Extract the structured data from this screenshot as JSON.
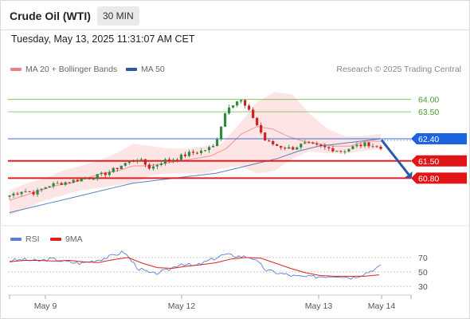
{
  "header": {
    "instrument": "Crude Oil (WTI)",
    "timeframe": "30 MIN",
    "datetime": "Tuesday, May 13, 2025 11:31:07 AM CET"
  },
  "legend": {
    "ma20_label": "MA 20 + Bollinger Bands",
    "ma50_label": "MA 50",
    "credit": "Research © 2025 Trading Central"
  },
  "colors": {
    "up": "#2e8b3e",
    "down": "#cc2222",
    "ma20": "#f08080",
    "band_fill": "#fde0e0",
    "ma50": "#3a6fb5",
    "resistance": "#3a6fd8",
    "support": "#e02020",
    "target_line": "#6fbf4a",
    "target_text": "#4c9a2a",
    "rsi": "#5b7fd9",
    "rsi_ma": "#e02020",
    "arrow": "#2b5aa5"
  },
  "chart_data": [
    {
      "type": "candlestick",
      "x_ticks": [
        "May 9",
        "May 12",
        "May 13",
        "May 14"
      ],
      "ylim": [
        58.9,
        64.8
      ],
      "levels": [
        {
          "value": 64.0,
          "label": "64.00",
          "kind": "target"
        },
        {
          "value": 63.5,
          "label": "63.50",
          "kind": "target"
        },
        {
          "value": 62.4,
          "label": "62.40",
          "kind": "resistance"
        },
        {
          "value": 61.5,
          "label": "61.50",
          "kind": "support"
        },
        {
          "value": 60.8,
          "label": "60.80",
          "kind": "support"
        }
      ],
      "close_path": [
        60.1,
        60.3,
        60.2,
        60.5,
        60.6,
        60.7,
        60.8,
        60.9,
        61.1,
        61.4,
        61.6,
        61.2,
        61.5,
        61.6,
        61.8,
        61.9,
        62.1,
        63.7,
        64.0,
        63.3,
        62.3,
        62.1,
        62.0,
        62.2,
        62.1,
        62.0,
        61.9,
        62.1,
        62.2,
        62.0
      ],
      "ma20": [
        59.9,
        60.1,
        60.3,
        60.5,
        60.6,
        60.8,
        61.0,
        61.1,
        61.3,
        61.3,
        61.4,
        61.5,
        61.6,
        61.7,
        62.0,
        62.6,
        62.9,
        62.8,
        62.5,
        62.3,
        62.2,
        62.1,
        62.1,
        62.3,
        62.3
      ],
      "bb_upper": [
        60.3,
        60.6,
        60.8,
        61.1,
        61.3,
        61.5,
        61.8,
        62.2,
        62.1,
        62.0,
        62.0,
        62.1,
        62.2,
        63.0,
        63.9,
        64.3,
        64.2,
        63.4,
        62.8,
        62.5,
        62.5,
        62.6
      ],
      "bb_lower": [
        59.3,
        59.6,
        59.9,
        60.1,
        60.3,
        60.4,
        60.5,
        60.6,
        60.9,
        61.0,
        61.0,
        61.0,
        61.2,
        61.3,
        61.0,
        61.1,
        61.6,
        61.9,
        61.8,
        61.8,
        61.9,
        62.0
      ],
      "ma50": [
        59.4,
        59.6,
        59.8,
        60.0,
        60.2,
        60.4,
        60.6,
        60.7,
        60.8,
        60.9,
        61.0,
        61.2,
        61.4,
        61.6,
        61.9,
        62.1,
        62.2,
        62.3,
        62.4
      ]
    },
    {
      "type": "line",
      "legend": [
        "RSI",
        "9MA"
      ],
      "levels": [
        70,
        50,
        30
      ],
      "ylim": [
        18,
        82
      ],
      "rsi": [
        66,
        67,
        65,
        68,
        64,
        62,
        66,
        71,
        78,
        55,
        47,
        52,
        62,
        58,
        66,
        74,
        72,
        70,
        52,
        48,
        44,
        43,
        44,
        45,
        42,
        49,
        58
      ],
      "rsi_ma": [
        64,
        66,
        66,
        65,
        66,
        64,
        63,
        67,
        70,
        62,
        56,
        55,
        58,
        60,
        63,
        68,
        70,
        69,
        62,
        55,
        49,
        45,
        44,
        44,
        44,
        46
      ]
    }
  ]
}
